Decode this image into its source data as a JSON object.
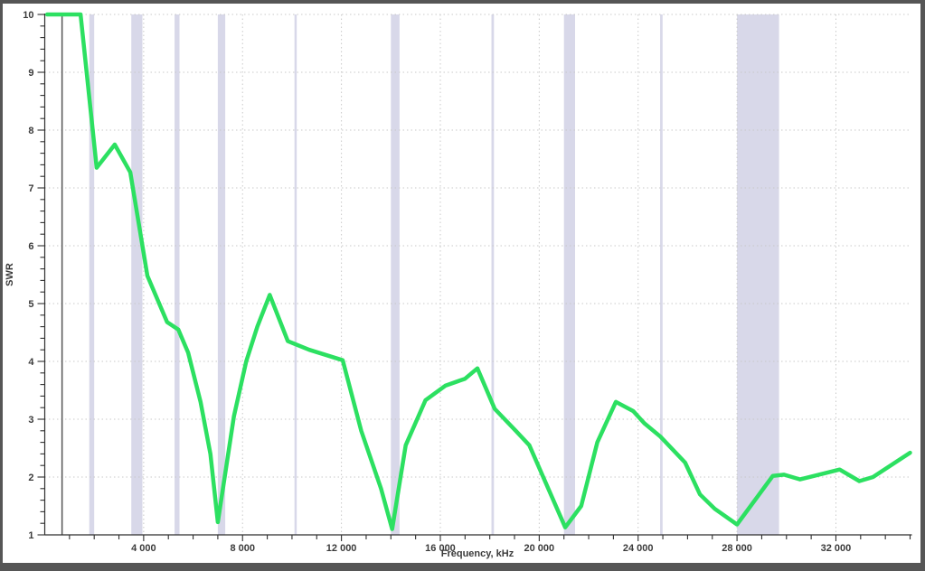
{
  "window": {
    "frame_color": "#565656",
    "background": "#ffffff"
  },
  "chart_data": {
    "type": "line",
    "title": "",
    "xlabel": "Frequency, kHz",
    "ylabel": "SWR",
    "xlim": [
      0,
      35000
    ],
    "ylim": [
      1,
      10
    ],
    "grid": "dotted",
    "legend": "none",
    "x_minor_tick_step_khz": 1000,
    "y_minor_tick_step": 0.2,
    "x_tick_values": [
      4000,
      8000,
      12000,
      16000,
      20000,
      24000,
      28000,
      32000
    ],
    "x_tick_labels": [
      "4 000",
      "8 000",
      "12 000",
      "16 000",
      "20 000",
      "24 000",
      "28 000",
      "32 000"
    ],
    "y_tick_values": [
      1,
      2,
      3,
      4,
      5,
      6,
      7,
      8,
      9,
      10
    ],
    "y_tick_labels": [
      "1",
      "2",
      "3",
      "4",
      "5",
      "6",
      "7",
      "8",
      "9",
      "10"
    ],
    "colors": {
      "curve": "#2CE061",
      "band_fill": "#D8D8E9",
      "gridline": "#C9C9C9",
      "axis": "#2F2F2F",
      "marker_line": "#555555",
      "text": "#3B3B3B"
    },
    "marker_line": {
      "frequency_khz": 700
    },
    "ham_bands_khz": [
      [
        1800,
        2000
      ],
      [
        3500,
        3950
      ],
      [
        5250,
        5450
      ],
      [
        7000,
        7300
      ],
      [
        10100,
        10150
      ],
      [
        14000,
        14350
      ],
      [
        18068,
        18168
      ],
      [
        21000,
        21450
      ],
      [
        24890,
        24990
      ],
      [
        28000,
        29700
      ]
    ],
    "series": [
      {
        "name": "SWR",
        "points": [
          [
            100,
            10.0
          ],
          [
            1450,
            10.0
          ],
          [
            2100,
            7.35
          ],
          [
            2830,
            7.75
          ],
          [
            3460,
            7.27
          ],
          [
            4150,
            5.48
          ],
          [
            4950,
            4.68
          ],
          [
            5400,
            4.55
          ],
          [
            5800,
            4.15
          ],
          [
            6300,
            3.3
          ],
          [
            6700,
            2.4
          ],
          [
            7000,
            1.22
          ],
          [
            7650,
            3.05
          ],
          [
            8150,
            4.0
          ],
          [
            8600,
            4.6
          ],
          [
            9100,
            5.15
          ],
          [
            9830,
            4.35
          ],
          [
            10700,
            4.2
          ],
          [
            12050,
            4.02
          ],
          [
            12800,
            2.8
          ],
          [
            13600,
            1.8
          ],
          [
            14050,
            1.1
          ],
          [
            14600,
            2.55
          ],
          [
            15400,
            3.33
          ],
          [
            16200,
            3.58
          ],
          [
            17000,
            3.7
          ],
          [
            17500,
            3.88
          ],
          [
            18200,
            3.18
          ],
          [
            19050,
            2.8
          ],
          [
            19600,
            2.55
          ],
          [
            21050,
            1.13
          ],
          [
            21700,
            1.5
          ],
          [
            22350,
            2.6
          ],
          [
            23100,
            3.3
          ],
          [
            23800,
            3.14
          ],
          [
            24250,
            2.93
          ],
          [
            24900,
            2.7
          ],
          [
            25900,
            2.25
          ],
          [
            26500,
            1.7
          ],
          [
            27100,
            1.45
          ],
          [
            28000,
            1.18
          ],
          [
            29450,
            2.02
          ],
          [
            29900,
            2.04
          ],
          [
            30550,
            1.96
          ],
          [
            32150,
            2.13
          ],
          [
            32950,
            1.93
          ],
          [
            33500,
            2.0
          ],
          [
            35000,
            2.42
          ]
        ]
      }
    ]
  }
}
